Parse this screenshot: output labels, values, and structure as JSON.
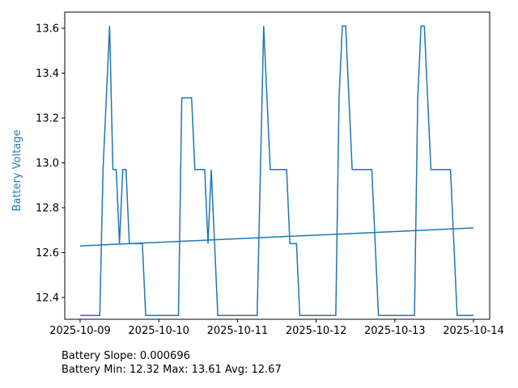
{
  "chart_data": {
    "type": "line",
    "ylabel": "Battery Voltage",
    "ylabel_color": "#1f77b4",
    "line_color": "#1f77b4",
    "xlim": [
      "2025-10-09T00:00",
      "2025-10-14T00:00"
    ],
    "ylim": [
      12.27,
      13.67
    ],
    "x_ticks": [
      "2025-10-09",
      "2025-10-10",
      "2025-10-11",
      "2025-10-12",
      "2025-10-13",
      "2025-10-14"
    ],
    "y_ticks": [
      "12.4",
      "12.6",
      "12.8",
      "13.0",
      "13.2",
      "13.4",
      "13.6"
    ],
    "grid": false,
    "series": [
      {
        "x": [
          "2025-10-09T00:00",
          "2025-10-09T06:00",
          "2025-10-09T07:00",
          "2025-10-09T09:00",
          "2025-10-09T10:00",
          "2025-10-09T11:00",
          "2025-10-09T12:00",
          "2025-10-09T13:00",
          "2025-10-09T14:00",
          "2025-10-09T15:00",
          "2025-10-09T16:00",
          "2025-10-09T19:00",
          "2025-10-09T20:00",
          "2025-10-10T06:00",
          "2025-10-10T07:00",
          "2025-10-10T10:00",
          "2025-10-10T11:00",
          "2025-10-10T14:00",
          "2025-10-10T15:00",
          "2025-10-10T16:00",
          "2025-10-10T18:00",
          "2025-10-11T06:00",
          "2025-10-11T08:00",
          "2025-10-11T10:00",
          "2025-10-11T15:00",
          "2025-10-11T16:00",
          "2025-10-11T18:00",
          "2025-10-11T19:00",
          "2025-10-12T06:00",
          "2025-10-12T07:00",
          "2025-10-12T08:00",
          "2025-10-12T09:00",
          "2025-10-12T11:00",
          "2025-10-12T17:00",
          "2025-10-12T19:00",
          "2025-10-13T06:00",
          "2025-10-13T07:00",
          "2025-10-13T08:00",
          "2025-10-13T09:00",
          "2025-10-13T11:00",
          "2025-10-13T17:00",
          "2025-10-13T19:00",
          "2025-10-13T23:59"
        ],
        "values": [
          12.32,
          12.32,
          12.97,
          13.61,
          12.97,
          12.97,
          12.64,
          12.97,
          12.97,
          12.64,
          12.64,
          12.64,
          12.32,
          12.32,
          13.29,
          13.29,
          12.97,
          12.97,
          12.64,
          12.97,
          12.32,
          12.32,
          13.61,
          12.97,
          12.97,
          12.64,
          12.64,
          12.32,
          12.32,
          13.29,
          13.61,
          13.61,
          12.97,
          12.97,
          12.32,
          12.32,
          13.29,
          13.61,
          13.61,
          12.97,
          12.97,
          12.32,
          12.32
        ]
      },
      {
        "x": [
          "2025-10-09T00:00",
          "2025-10-13T23:59"
        ],
        "values": [
          12.63,
          12.71
        ]
      }
    ]
  },
  "stats": {
    "slope_line": "Battery Slope: 0.000696",
    "minmax_line": "Battery Min: 12.32 Max: 13.61 Avg: 12.67"
  }
}
